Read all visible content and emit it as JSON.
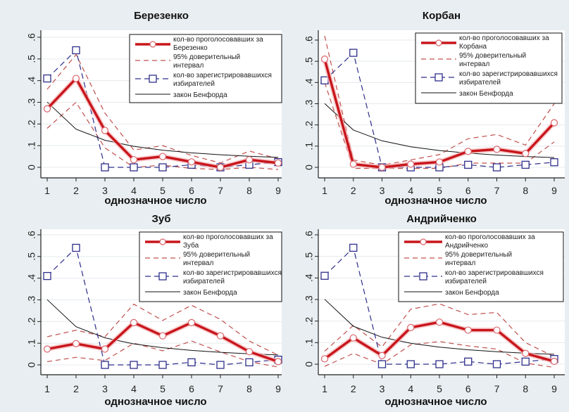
{
  "legend": {
    "votes_prefix": "кол-во проголосовавших за",
    "ci_line1": "95% доверительный",
    "ci_line2": "интервал",
    "reg_line1": "кол-во зарегистрировавшихся",
    "reg_line2": "избирателей",
    "benford": "закон Бенфорда"
  },
  "colors": {
    "votes": "#c8151b",
    "ci": "#c0504d",
    "registered": "#2e2e8a",
    "benford": "#111111",
    "panel_bg": "#e8eef1",
    "plot_bg": "#ffffff"
  },
  "chart_data": [
    {
      "type": "line",
      "title": "Березенко",
      "legend_name": "Березенко",
      "xlabel": "однозначное число",
      "ylabel": "",
      "x": [
        1,
        2,
        3,
        4,
        5,
        6,
        7,
        8,
        9
      ],
      "xticks": [
        "1",
        "2",
        "3",
        "4",
        "5",
        "6",
        "7",
        "8",
        "9"
      ],
      "yticks": [
        "0",
        ".1",
        ".2",
        ".3",
        ".4",
        ".5",
        ".6"
      ],
      "ylim": [
        -0.03,
        0.63
      ],
      "grid": true,
      "legend_position": "top-right",
      "series": [
        {
          "name": "кол-во проголосовавших за Березенко",
          "values": [
            0.27,
            0.41,
            0.17,
            0.035,
            0.05,
            0.025,
            0.0,
            0.035,
            0.02
          ]
        },
        {
          "name": "95% доверительный интервал (верх)",
          "values": [
            0.36,
            0.52,
            0.25,
            0.08,
            0.1,
            0.055,
            0.02,
            0.075,
            0.04
          ]
        },
        {
          "name": "95% доверительный интервал (низ)",
          "values": [
            0.18,
            0.3,
            0.09,
            0.0,
            0.01,
            -0.005,
            -0.01,
            0.0,
            -0.01
          ]
        },
        {
          "name": "кол-во зарегистрировавшихся избирателей",
          "values": [
            0.41,
            0.54,
            0.0,
            0.0,
            0.0,
            0.012,
            0.0,
            0.012,
            0.024
          ]
        },
        {
          "name": "закон Бенфорда",
          "values": [
            0.301,
            0.176,
            0.125,
            0.097,
            0.079,
            0.067,
            0.058,
            0.051,
            0.046
          ]
        }
      ]
    },
    {
      "type": "line",
      "title": "Корбан",
      "legend_name": "Корбана",
      "xlabel": "однозначное число",
      "ylabel": "",
      "x": [
        1,
        2,
        3,
        4,
        5,
        6,
        7,
        8,
        9
      ],
      "xticks": [
        "1",
        "2",
        "3",
        "4",
        "5",
        "6",
        "7",
        "8",
        "9"
      ],
      "yticks": [
        "0",
        ".1",
        ".2",
        ".3",
        ".4",
        ".5",
        ".6"
      ],
      "ylim": [
        -0.03,
        0.63
      ],
      "grid": true,
      "legend_position": "top-right",
      "series": [
        {
          "name": "кол-во проголосовавших за Корбана",
          "values": [
            0.51,
            0.015,
            0.0,
            0.015,
            0.025,
            0.075,
            0.085,
            0.065,
            0.21
          ]
        },
        {
          "name": "95% доверительный интервал (верх)",
          "values": [
            0.62,
            0.035,
            0.01,
            0.035,
            0.06,
            0.135,
            0.155,
            0.105,
            0.3
          ]
        },
        {
          "name": "95% доверительный интервал (низ)",
          "values": [
            0.4,
            -0.005,
            -0.005,
            -0.005,
            -0.005,
            0.02,
            0.02,
            0.02,
            0.12
          ]
        },
        {
          "name": "кол-во зарегистрировавшихся избирателей",
          "values": [
            0.41,
            0.54,
            0.0,
            0.0,
            0.0,
            0.012,
            0.0,
            0.012,
            0.024
          ]
        },
        {
          "name": "закон Бенфорда",
          "values": [
            0.301,
            0.176,
            0.125,
            0.097,
            0.079,
            0.067,
            0.058,
            0.051,
            0.046
          ]
        }
      ]
    },
    {
      "type": "line",
      "title": "Зуб",
      "legend_name": "Зуба",
      "xlabel": "однозначное число",
      "ylabel": "",
      "x": [
        1,
        2,
        3,
        4,
        5,
        6,
        7,
        8,
        9
      ],
      "xticks": [
        "1",
        "2",
        "3",
        "4",
        "5",
        "6",
        "7",
        "8",
        "9"
      ],
      "yticks": [
        "0",
        ".1",
        ".2",
        ".3",
        ".4",
        ".5",
        ".6"
      ],
      "ylim": [
        -0.03,
        0.63
      ],
      "grid": true,
      "legend_position": "top-right",
      "series": [
        {
          "name": "кол-во проголосовавших за Зуба",
          "values": [
            0.073,
            0.098,
            0.073,
            0.195,
            0.134,
            0.195,
            0.134,
            0.061,
            0.015
          ]
        },
        {
          "name": "95% доверительный интервал (верх)",
          "values": [
            0.13,
            0.16,
            0.13,
            0.28,
            0.205,
            0.275,
            0.21,
            0.11,
            0.045
          ]
        },
        {
          "name": "95% доверительный интервал (низ)",
          "values": [
            0.015,
            0.035,
            0.02,
            0.1,
            0.065,
            0.11,
            0.06,
            0.015,
            -0.01
          ]
        },
        {
          "name": "кол-во зарегистрировавшихся избирателей",
          "values": [
            0.41,
            0.54,
            0.0,
            0.0,
            0.0,
            0.012,
            0.0,
            0.012,
            0.024
          ]
        },
        {
          "name": "закон Бенфорда",
          "values": [
            0.301,
            0.176,
            0.125,
            0.097,
            0.079,
            0.067,
            0.058,
            0.051,
            0.046
          ]
        }
      ]
    },
    {
      "type": "line",
      "title": "Андрийченко",
      "legend_name": "Андрийченко",
      "xlabel": "однозначное число",
      "ylabel": "",
      "x": [
        1,
        2,
        3,
        4,
        5,
        6,
        7,
        8,
        9
      ],
      "xticks": [
        "1",
        "2",
        "3",
        "4",
        "5",
        "6",
        "7",
        "8",
        "9"
      ],
      "yticks": [
        "0",
        ".1",
        ".2",
        ".3",
        ".4",
        ".5",
        ".6"
      ],
      "ylim": [
        -0.03,
        0.63
      ],
      "grid": true,
      "legend_position": "top-right",
      "series": [
        {
          "name": "кол-во проголосовавших за Андрийченко",
          "values": [
            0.025,
            0.122,
            0.04,
            0.17,
            0.195,
            0.158,
            0.158,
            0.05,
            0.013
          ]
        },
        {
          "name": "95% доверительный интервал (верх)",
          "values": [
            0.06,
            0.18,
            0.08,
            0.255,
            0.28,
            0.23,
            0.24,
            0.1,
            0.035
          ]
        },
        {
          "name": "95% доверительный интервал (низ)",
          "values": [
            -0.01,
            0.05,
            0.0,
            0.09,
            0.105,
            0.085,
            0.07,
            0.005,
            -0.015
          ]
        },
        {
          "name": "кол-во зарегистрировавшихся избирателей",
          "values": [
            0.41,
            0.54,
            0.0,
            0.0,
            0.0,
            0.012,
            0.0,
            0.012,
            0.024
          ]
        },
        {
          "name": "закон Бенфорда",
          "values": [
            0.301,
            0.176,
            0.125,
            0.097,
            0.079,
            0.067,
            0.058,
            0.051,
            0.046
          ]
        }
      ]
    }
  ]
}
